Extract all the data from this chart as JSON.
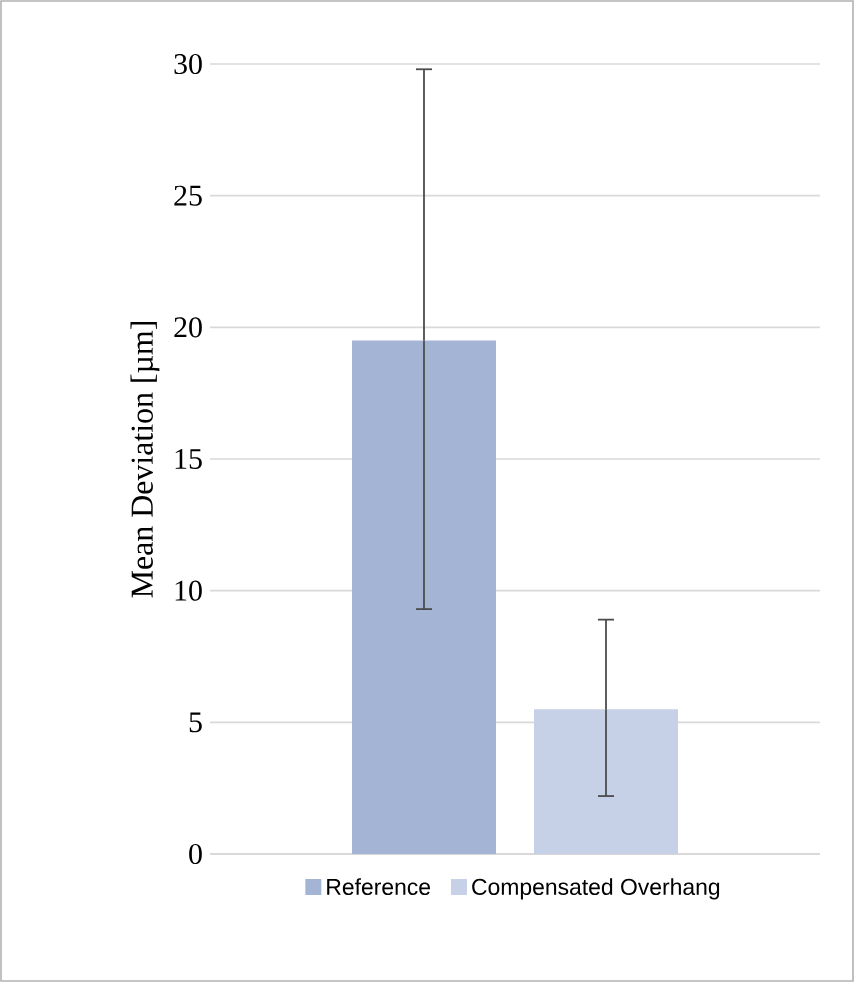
{
  "chart_data": {
    "type": "bar",
    "ylabel": "Mean Deviation [µm]",
    "categories": [
      null
    ],
    "series": [
      {
        "name": "Reference",
        "color": "#a3b4d5",
        "values": [
          19.5
        ],
        "errors": [
          [
            9.3,
            29.8
          ]
        ]
      },
      {
        "name": "Compensated Overhang",
        "color": "#c6d0e6",
        "values": [
          5.5
        ],
        "errors": [
          [
            2.2,
            8.9
          ]
        ]
      }
    ],
    "ylim": [
      0,
      30
    ],
    "yticks": [
      0,
      5,
      10,
      15,
      20,
      25,
      30
    ],
    "grid": "y",
    "legend": "bottom"
  }
}
